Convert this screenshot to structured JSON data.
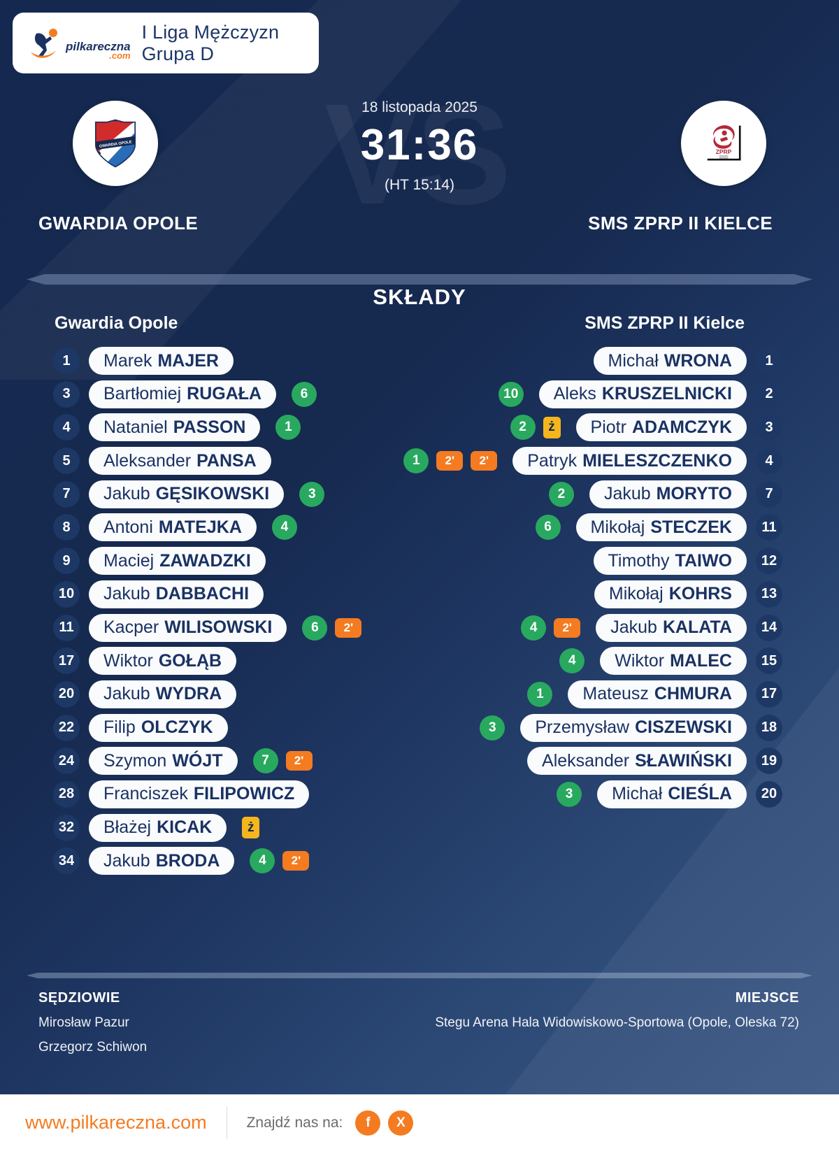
{
  "header": {
    "league": "I Liga Mężczyzn Grupa D",
    "logo_text": "pilkareczna",
    "logo_tld": ".com"
  },
  "match": {
    "date": "18 listopada 2025",
    "score": "31:36",
    "halftime": "(HT 15:14)",
    "vs_watermark": "VS",
    "home": {
      "name": "GWARDIA OPOLE"
    },
    "away": {
      "name": "SMS ZPRP II KIELCE"
    }
  },
  "lineups": {
    "title": "SKŁADY",
    "home_header": "Gwardia Opole",
    "away_header": "SMS ZPRP II Kielce",
    "home": [
      {
        "num": "1",
        "first": "Marek",
        "last": "MAJER",
        "badges": []
      },
      {
        "num": "3",
        "first": "Bartłomiej",
        "last": "RUGAŁA",
        "badges": [
          {
            "type": "goals",
            "value": "6"
          }
        ]
      },
      {
        "num": "4",
        "first": "Nataniel",
        "last": "PASSON",
        "badges": [
          {
            "type": "goals",
            "value": "1"
          }
        ]
      },
      {
        "num": "5",
        "first": "Aleksander",
        "last": "PANSA",
        "badges": []
      },
      {
        "num": "7",
        "first": "Jakub",
        "last": "GĘSIKOWSKI",
        "badges": [
          {
            "type": "goals",
            "value": "3"
          }
        ]
      },
      {
        "num": "8",
        "first": "Antoni",
        "last": "MATEJKA",
        "badges": [
          {
            "type": "goals",
            "value": "4"
          }
        ]
      },
      {
        "num": "9",
        "first": "Maciej",
        "last": "ZAWADZKI",
        "badges": []
      },
      {
        "num": "10",
        "first": "Jakub",
        "last": "DABBACHI",
        "badges": []
      },
      {
        "num": "11",
        "first": "Kacper",
        "last": "WILISOWSKI",
        "badges": [
          {
            "type": "goals",
            "value": "6"
          },
          {
            "type": "susp",
            "value": "2'"
          }
        ]
      },
      {
        "num": "17",
        "first": "Wiktor",
        "last": "GOŁĄB",
        "badges": []
      },
      {
        "num": "20",
        "first": "Jakub",
        "last": "WYDRA",
        "badges": []
      },
      {
        "num": "22",
        "first": "Filip",
        "last": "OLCZYK",
        "badges": []
      },
      {
        "num": "24",
        "first": "Szymon",
        "last": "WÓJT",
        "badges": [
          {
            "type": "goals",
            "value": "7"
          },
          {
            "type": "susp",
            "value": "2'"
          }
        ]
      },
      {
        "num": "28",
        "first": "Franciszek",
        "last": "FILIPOWICZ",
        "badges": []
      },
      {
        "num": "32",
        "first": "Błażej",
        "last": "KICAK",
        "badges": [
          {
            "type": "yellow",
            "value": "ż"
          }
        ]
      },
      {
        "num": "34",
        "first": "Jakub",
        "last": "BRODA",
        "badges": [
          {
            "type": "goals",
            "value": "4"
          },
          {
            "type": "susp",
            "value": "2'"
          }
        ]
      }
    ],
    "away": [
      {
        "num": "1",
        "first": "Michał",
        "last": "WRONA",
        "badges": []
      },
      {
        "num": "2",
        "first": "Aleks",
        "last": "KRUSZELNICKI",
        "badges": [
          {
            "type": "goals",
            "value": "10"
          }
        ]
      },
      {
        "num": "3",
        "first": "Piotr",
        "last": "ADAMCZYK",
        "badges": [
          {
            "type": "goals",
            "value": "2"
          },
          {
            "type": "yellow",
            "value": "ż"
          }
        ]
      },
      {
        "num": "4",
        "first": "Patryk",
        "last": "MIELESZCZENKO",
        "badges": [
          {
            "type": "goals",
            "value": "1"
          },
          {
            "type": "susp",
            "value": "2'"
          },
          {
            "type": "susp",
            "value": "2'"
          }
        ]
      },
      {
        "num": "7",
        "first": "Jakub",
        "last": "MORYTO",
        "badges": [
          {
            "type": "goals",
            "value": "2"
          }
        ]
      },
      {
        "num": "11",
        "first": "Mikołaj",
        "last": "STECZEK",
        "badges": [
          {
            "type": "goals",
            "value": "6"
          }
        ]
      },
      {
        "num": "12",
        "first": "Timothy",
        "last": "TAIWO",
        "badges": []
      },
      {
        "num": "13",
        "first": "Mikołaj",
        "last": "KOHRS",
        "badges": []
      },
      {
        "num": "14",
        "first": "Jakub",
        "last": "KALATA",
        "badges": [
          {
            "type": "goals",
            "value": "4"
          },
          {
            "type": "susp",
            "value": "2'"
          }
        ]
      },
      {
        "num": "15",
        "first": "Wiktor",
        "last": "MALEC",
        "badges": [
          {
            "type": "goals",
            "value": "4"
          }
        ]
      },
      {
        "num": "17",
        "first": "Mateusz",
        "last": "CHMURA",
        "badges": [
          {
            "type": "goals",
            "value": "1"
          }
        ]
      },
      {
        "num": "18",
        "first": "Przemysław",
        "last": "CISZEWSKI",
        "badges": [
          {
            "type": "goals",
            "value": "3"
          }
        ]
      },
      {
        "num": "19",
        "first": "Aleksander",
        "last": "SŁAWIŃSKI",
        "badges": []
      },
      {
        "num": "20",
        "first": "Michał",
        "last": "CIEŚLA",
        "badges": [
          {
            "type": "goals",
            "value": "3"
          }
        ]
      }
    ]
  },
  "footer_info": {
    "referees_label": "SĘDZIOWIE",
    "venue_label": "MIEJSCE",
    "referees": [
      "Mirosław Pazur",
      "Grzegorz Schiwon"
    ],
    "venue": "Stegu Arena Hala Widowiskowo-Sportowa (Opole, Oleska 72)"
  },
  "bottom_bar": {
    "website": "www.pilkareczna.com",
    "find_us": "Znajdź nas na:",
    "social": [
      {
        "label": "f",
        "name": "facebook-icon"
      },
      {
        "label": "X",
        "name": "x-twitter-icon"
      }
    ]
  },
  "colors": {
    "background_navy": "#16294F",
    "background_light": "#3C5A86",
    "goals_green": "#28A95F",
    "suspension_orange": "#F47B20",
    "yellow_card": "#F5B51C",
    "pill_text_navy": "#1A3263",
    "accent_orange": "#F47B20"
  }
}
